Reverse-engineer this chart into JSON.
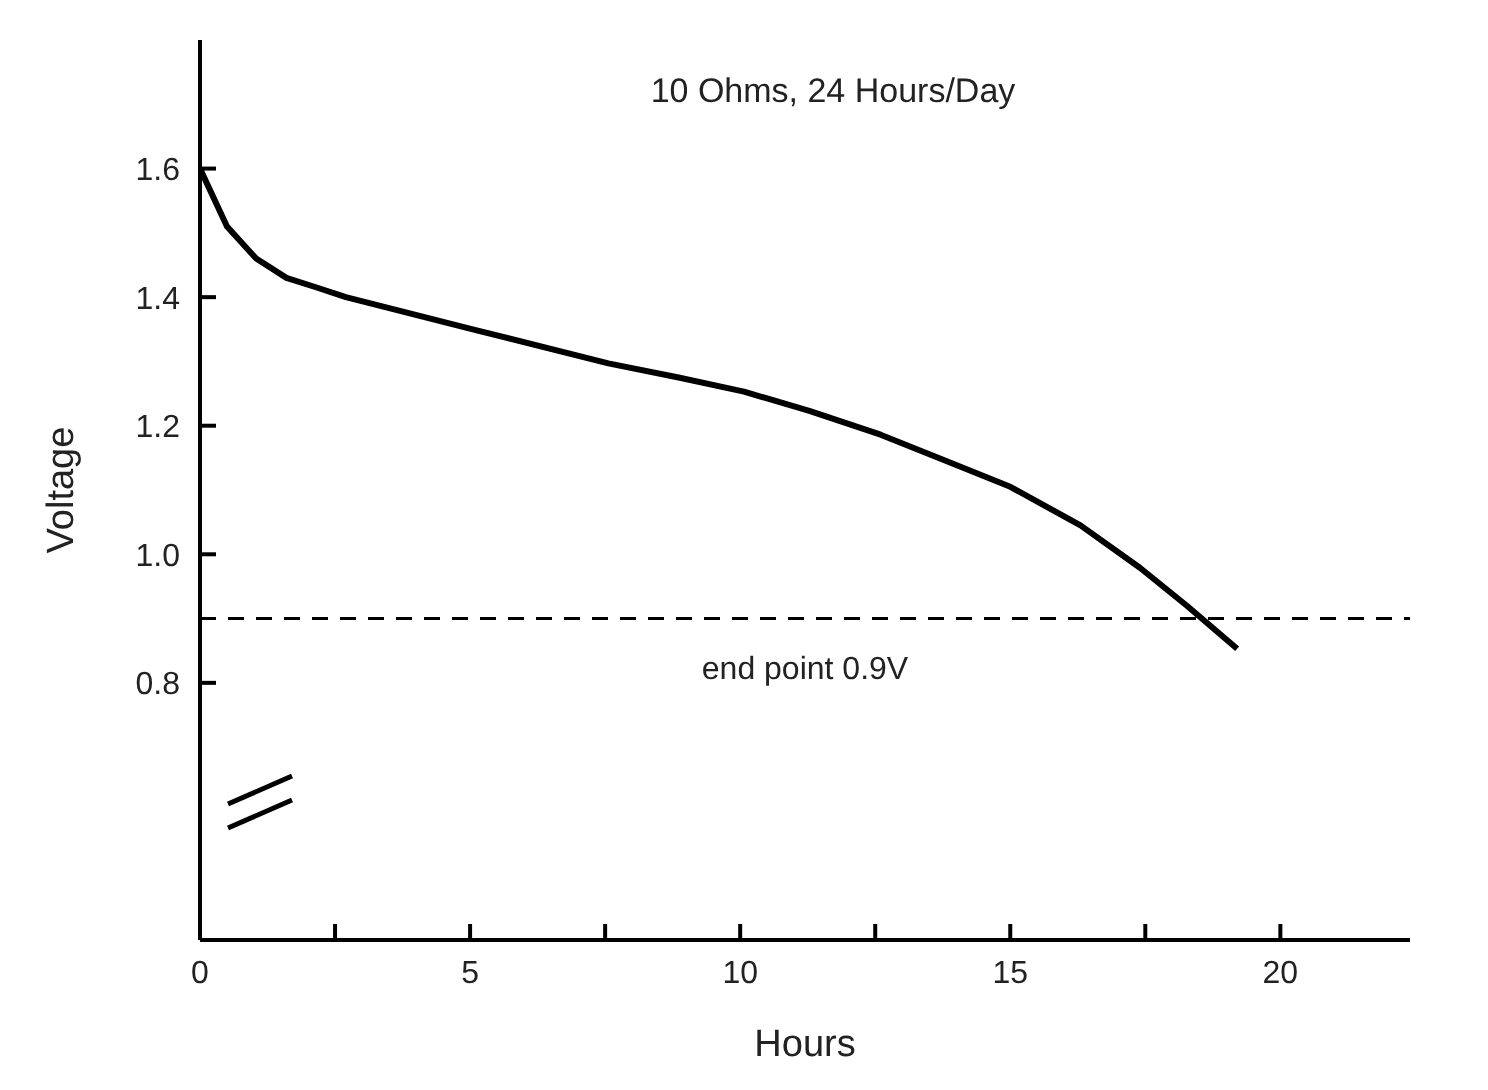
{
  "chart_data": {
    "type": "line",
    "title": "10 Ohms, 24 Hours/Day",
    "xlabel": "Hours",
    "ylabel": "Voltage",
    "x": [
      0,
      0.5,
      1.04,
      1.6,
      2.16,
      2.7,
      5.05,
      7.56,
      8.86,
      10.07,
      11.28,
      12.6,
      13.7,
      15.0,
      16.3,
      17.4,
      18.27,
      19.2
    ],
    "series": [
      {
        "color": "#000000",
        "values": [
          1.6,
          1.51,
          1.46,
          1.43,
          1.415,
          1.4,
          1.35,
          1.297,
          1.275,
          1.253,
          1.223,
          1.186,
          1.149,
          1.105,
          1.045,
          0.979,
          0.92,
          0.853
        ]
      }
    ],
    "xlim": [
      0,
      22.4
    ],
    "xticks": [
      0,
      {
        "value": 2.5,
        "label": null
      },
      5,
      {
        "value": 7.5,
        "label": null
      },
      10,
      {
        "value": 12.5,
        "label": null
      },
      15,
      {
        "value": 17.5,
        "label": null
      },
      20
    ],
    "ylim": [
      0.4,
      1.8
    ],
    "yticks": [
      0.8,
      {
        "value": 1,
        "label": "1.0"
      },
      1.2,
      1.4,
      1.6
    ],
    "ref_lines": [
      {
        "axis": "y",
        "value": 0.9,
        "label": "end point 0.9V",
        "color": "#000000",
        "line_style": "dashed"
      }
    ],
    "grid": false,
    "legend": false,
    "marker": "none",
    "line_style": "solid"
  }
}
